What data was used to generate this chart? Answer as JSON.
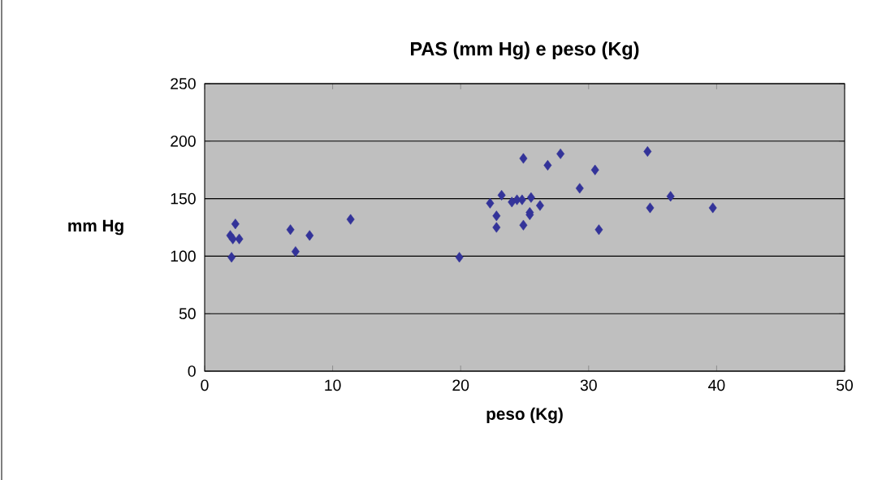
{
  "chart_data": {
    "type": "scatter",
    "title": "PAS (mm Hg) e peso (Kg)",
    "xlabel": "peso (Kg)",
    "ylabel": "mm  Hg",
    "x": [
      2.1,
      2.0,
      2.4,
      2.2,
      2.7,
      6.7,
      7.1,
      8.2,
      11.4,
      19.9,
      22.3,
      22.8,
      22.8,
      23.2,
      24.0,
      24.4,
      24.9,
      24.9,
      24.8,
      25.5,
      25.4,
      25.4,
      26.2,
      26.8,
      27.8,
      29.3,
      30.5,
      30.8,
      34.6,
      34.8,
      36.4,
      39.7
    ],
    "series": [
      {
        "color": "#333399",
        "values": [
          99,
          118,
          128,
          115,
          115,
          123,
          104,
          118,
          132,
          99,
          146,
          135,
          125,
          153,
          147,
          149,
          185,
          127,
          149,
          151,
          138,
          136,
          144,
          179,
          189,
          159,
          175,
          123,
          191,
          142,
          152,
          142
        ]
      }
    ],
    "xlim": [
      0,
      50
    ],
    "ylim": [
      0,
      250
    ],
    "xticks": [
      0,
      10,
      20,
      30,
      40,
      50
    ],
    "yticks": [
      0,
      50,
      100,
      150,
      200,
      250
    ],
    "grid": "y",
    "marker": "diamond"
  }
}
